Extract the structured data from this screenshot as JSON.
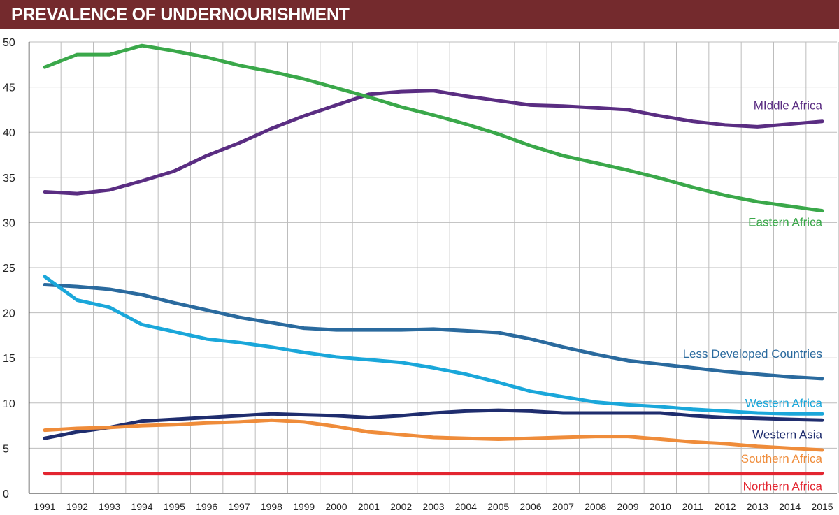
{
  "chart_data": {
    "type": "line",
    "title": "PREVALENCE OF UNDERNOURISHMENT",
    "xlabel": "",
    "ylabel": "",
    "ylim": [
      0,
      50
    ],
    "yticks": [
      0,
      5,
      10,
      15,
      20,
      25,
      30,
      35,
      40,
      45,
      50
    ],
    "grid": true,
    "legend": "inline-right",
    "x": [
      "1991",
      "1992",
      "1993",
      "1994",
      "1995",
      "1996",
      "1997",
      "1998",
      "1999",
      "2000",
      "2001",
      "2002",
      "2003",
      "2004",
      "2005",
      "2006",
      "2007",
      "2008",
      "2009",
      "2010",
      "2011",
      "2012",
      "2013",
      "2014",
      "2015"
    ],
    "series": [
      {
        "name": "MIddle Africa",
        "color": "#5a2d82",
        "values": [
          33.4,
          33.2,
          33.6,
          34.6,
          35.7,
          37.4,
          38.8,
          40.4,
          41.8,
          43.0,
          44.2,
          44.5,
          44.6,
          44.0,
          43.5,
          43.0,
          42.9,
          42.7,
          42.5,
          41.8,
          41.2,
          40.8,
          40.6,
          40.9,
          41.2
        ]
      },
      {
        "name": "Eastern Africa",
        "color": "#3aa84a",
        "values": [
          47.2,
          48.6,
          48.6,
          49.6,
          49.0,
          48.3,
          47.4,
          46.7,
          45.9,
          44.9,
          43.9,
          42.8,
          41.9,
          40.9,
          39.8,
          38.5,
          37.4,
          36.6,
          35.8,
          34.9,
          33.9,
          33.0,
          32.3,
          31.8,
          31.3
        ]
      },
      {
        "name": "Less Developed Countries",
        "color": "#2a6a9e",
        "values": [
          23.1,
          22.9,
          22.6,
          22.0,
          21.1,
          20.3,
          19.5,
          18.9,
          18.3,
          18.1,
          18.1,
          18.1,
          18.2,
          18.0,
          17.8,
          17.1,
          16.2,
          15.4,
          14.7,
          14.3,
          13.9,
          13.5,
          13.2,
          12.9,
          12.7
        ]
      },
      {
        "name": "Western Africa",
        "color": "#1aa7da",
        "values": [
          24.0,
          21.4,
          20.6,
          18.7,
          17.9,
          17.1,
          16.7,
          16.2,
          15.6,
          15.1,
          14.8,
          14.5,
          13.9,
          13.2,
          12.3,
          11.3,
          10.7,
          10.1,
          9.8,
          9.6,
          9.3,
          9.1,
          8.9,
          8.8,
          8.8
        ]
      },
      {
        "name": "Western Asia",
        "color": "#1f2d6e",
        "values": [
          6.1,
          6.8,
          7.3,
          8.0,
          8.2,
          8.4,
          8.6,
          8.8,
          8.7,
          8.6,
          8.4,
          8.6,
          8.9,
          9.1,
          9.2,
          9.1,
          8.9,
          8.9,
          8.9,
          8.9,
          8.6,
          8.4,
          8.3,
          8.2,
          8.1
        ]
      },
      {
        "name": "Southern Africa",
        "color": "#ef8c3a",
        "values": [
          7.0,
          7.2,
          7.3,
          7.5,
          7.6,
          7.8,
          7.9,
          8.1,
          7.9,
          7.4,
          6.8,
          6.5,
          6.2,
          6.1,
          6.0,
          6.1,
          6.2,
          6.3,
          6.3,
          6.0,
          5.7,
          5.5,
          5.2,
          5.0,
          4.8
        ]
      },
      {
        "name": "Northern Africa",
        "color": "#e32530",
        "values": [
          2.2,
          2.2,
          2.2,
          2.2,
          2.2,
          2.2,
          2.2,
          2.2,
          2.2,
          2.2,
          2.2,
          2.2,
          2.2,
          2.2,
          2.2,
          2.2,
          2.2,
          2.2,
          2.2,
          2.2,
          2.2,
          2.2,
          2.2,
          2.2,
          2.2
        ]
      }
    ]
  }
}
